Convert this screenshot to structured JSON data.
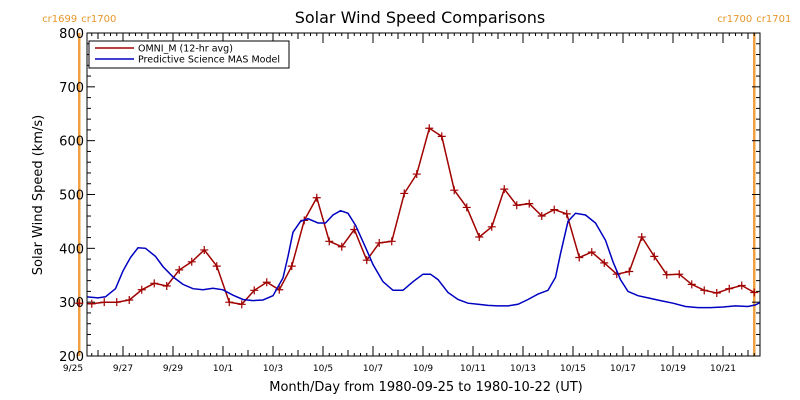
{
  "chart_data": {
    "type": "line",
    "title": "Solar Wind Speed Comparisons",
    "xlabel": "Month/Day from 1980-09-25 to 1980-10-22 (UT)",
    "ylabel": "Solar Wind Speed (km/s)",
    "ylim": [
      200,
      800
    ],
    "xlim_days": [
      0,
      27.5
    ],
    "yticks": [
      "200",
      "300",
      "400",
      "500",
      "600",
      "700",
      "800"
    ],
    "xticks": [
      {
        "label": "9/25",
        "day": 0
      },
      {
        "label": "9/27",
        "day": 2
      },
      {
        "label": "9/29",
        "day": 4
      },
      {
        "label": "10/1",
        "day": 6
      },
      {
        "label": "10/3",
        "day": 8
      },
      {
        "label": "10/5",
        "day": 10
      },
      {
        "label": "10/7",
        "day": 12
      },
      {
        "label": "10/9",
        "day": 14
      },
      {
        "label": "10/11",
        "day": 16
      },
      {
        "label": "10/13",
        "day": 18
      },
      {
        "label": "10/15",
        "day": 20
      },
      {
        "label": "10/17",
        "day": 22
      },
      {
        "label": "10/19",
        "day": 24
      },
      {
        "label": "10/21",
        "day": 26
      }
    ],
    "carrington_markers": [
      {
        "day": 0.25,
        "left_label": "cr1699",
        "right_label": "cr1700"
      },
      {
        "day": 27.25,
        "left_label": "cr1700",
        "right_label": "cr1701"
      }
    ],
    "legend_position": "top-left",
    "series": [
      {
        "name": "OMNI_M (12-hr avg)",
        "color": "#a00000",
        "markers": "plus",
        "points": [
          [
            0.25,
            298
          ],
          [
            0.75,
            297
          ],
          [
            1.25,
            300
          ],
          [
            1.75,
            300
          ],
          [
            2.25,
            304
          ],
          [
            2.75,
            323
          ],
          [
            3.25,
            335
          ],
          [
            3.75,
            330
          ],
          [
            4.25,
            360
          ],
          [
            4.75,
            375
          ],
          [
            5.25,
            397
          ],
          [
            5.75,
            367
          ],
          [
            6.25,
            300
          ],
          [
            6.75,
            296
          ],
          [
            7.25,
            322
          ],
          [
            7.75,
            337
          ],
          [
            8.25,
            323
          ],
          [
            8.75,
            367
          ],
          [
            9.25,
            452
          ],
          [
            9.75,
            494
          ],
          [
            10.25,
            413
          ],
          [
            10.75,
            403
          ],
          [
            11.25,
            435
          ],
          [
            11.75,
            378
          ],
          [
            12.25,
            410
          ],
          [
            12.75,
            413
          ],
          [
            13.25,
            502
          ],
          [
            13.75,
            538
          ],
          [
            14.25,
            623
          ],
          [
            14.75,
            608
          ],
          [
            15.25,
            508
          ],
          [
            15.75,
            476
          ],
          [
            16.25,
            421
          ],
          [
            16.75,
            440
          ],
          [
            17.25,
            510
          ],
          [
            17.75,
            480
          ],
          [
            18.25,
            483
          ],
          [
            18.75,
            460
          ],
          [
            19.25,
            472
          ],
          [
            19.75,
            464
          ],
          [
            20.25,
            383
          ],
          [
            20.75,
            393
          ],
          [
            21.25,
            373
          ],
          [
            21.75,
            352
          ],
          [
            22.25,
            357
          ],
          [
            22.75,
            421
          ],
          [
            23.25,
            385
          ],
          [
            23.75,
            351
          ],
          [
            24.25,
            352
          ],
          [
            24.75,
            333
          ],
          [
            25.25,
            322
          ],
          [
            25.75,
            317
          ],
          [
            26.25,
            325
          ],
          [
            26.75,
            331
          ],
          [
            27.25,
            318
          ]
        ]
      },
      {
        "name": "Predictive Science MAS Model",
        "color": "#0000c0",
        "markers": "none",
        "points": [
          [
            0,
            308
          ],
          [
            0.5,
            310
          ],
          [
            1,
            308
          ],
          [
            1.3,
            310
          ],
          [
            1.7,
            325
          ],
          [
            2,
            358
          ],
          [
            2.3,
            383
          ],
          [
            2.6,
            401
          ],
          [
            2.9,
            400
          ],
          [
            3.3,
            385
          ],
          [
            3.6,
            366
          ],
          [
            4,
            347
          ],
          [
            4.4,
            333
          ],
          [
            4.8,
            325
          ],
          [
            5.2,
            323
          ],
          [
            5.6,
            326
          ],
          [
            6,
            323
          ],
          [
            6.4,
            313
          ],
          [
            6.8,
            305
          ],
          [
            7.2,
            303
          ],
          [
            7.6,
            304
          ],
          [
            8,
            312
          ],
          [
            8.4,
            345
          ],
          [
            8.6,
            385
          ],
          [
            8.8,
            430
          ],
          [
            9.1,
            450
          ],
          [
            9.4,
            455
          ],
          [
            9.8,
            447
          ],
          [
            10.1,
            447
          ],
          [
            10.4,
            462
          ],
          [
            10.7,
            470
          ],
          [
            11,
            465
          ],
          [
            11.3,
            443
          ],
          [
            11.7,
            402
          ],
          [
            12,
            370
          ],
          [
            12.4,
            338
          ],
          [
            12.8,
            322
          ],
          [
            13.2,
            322
          ],
          [
            13.6,
            338
          ],
          [
            14,
            352
          ],
          [
            14.3,
            352
          ],
          [
            14.6,
            342
          ],
          [
            15,
            318
          ],
          [
            15.4,
            305
          ],
          [
            15.8,
            298
          ],
          [
            16.2,
            296
          ],
          [
            16.6,
            294
          ],
          [
            17,
            293
          ],
          [
            17.4,
            293
          ],
          [
            17.8,
            296
          ],
          [
            18.2,
            305
          ],
          [
            18.6,
            315
          ],
          [
            19,
            322
          ],
          [
            19.3,
            346
          ],
          [
            19.5,
            390
          ],
          [
            19.8,
            450
          ],
          [
            20.1,
            465
          ],
          [
            20.5,
            462
          ],
          [
            20.9,
            447
          ],
          [
            21.3,
            415
          ],
          [
            21.6,
            375
          ],
          [
            21.9,
            342
          ],
          [
            22.2,
            320
          ],
          [
            22.6,
            312
          ],
          [
            23,
            308
          ],
          [
            23.5,
            303
          ],
          [
            24,
            298
          ],
          [
            24.5,
            292
          ],
          [
            25,
            290
          ],
          [
            25.5,
            290
          ],
          [
            26,
            291
          ],
          [
            26.5,
            293
          ],
          [
            27,
            292
          ],
          [
            27.3,
            295
          ],
          [
            27.5,
            300
          ],
          [
            27.8,
            308
          ],
          [
            28,
            311
          ]
        ]
      }
    ]
  }
}
